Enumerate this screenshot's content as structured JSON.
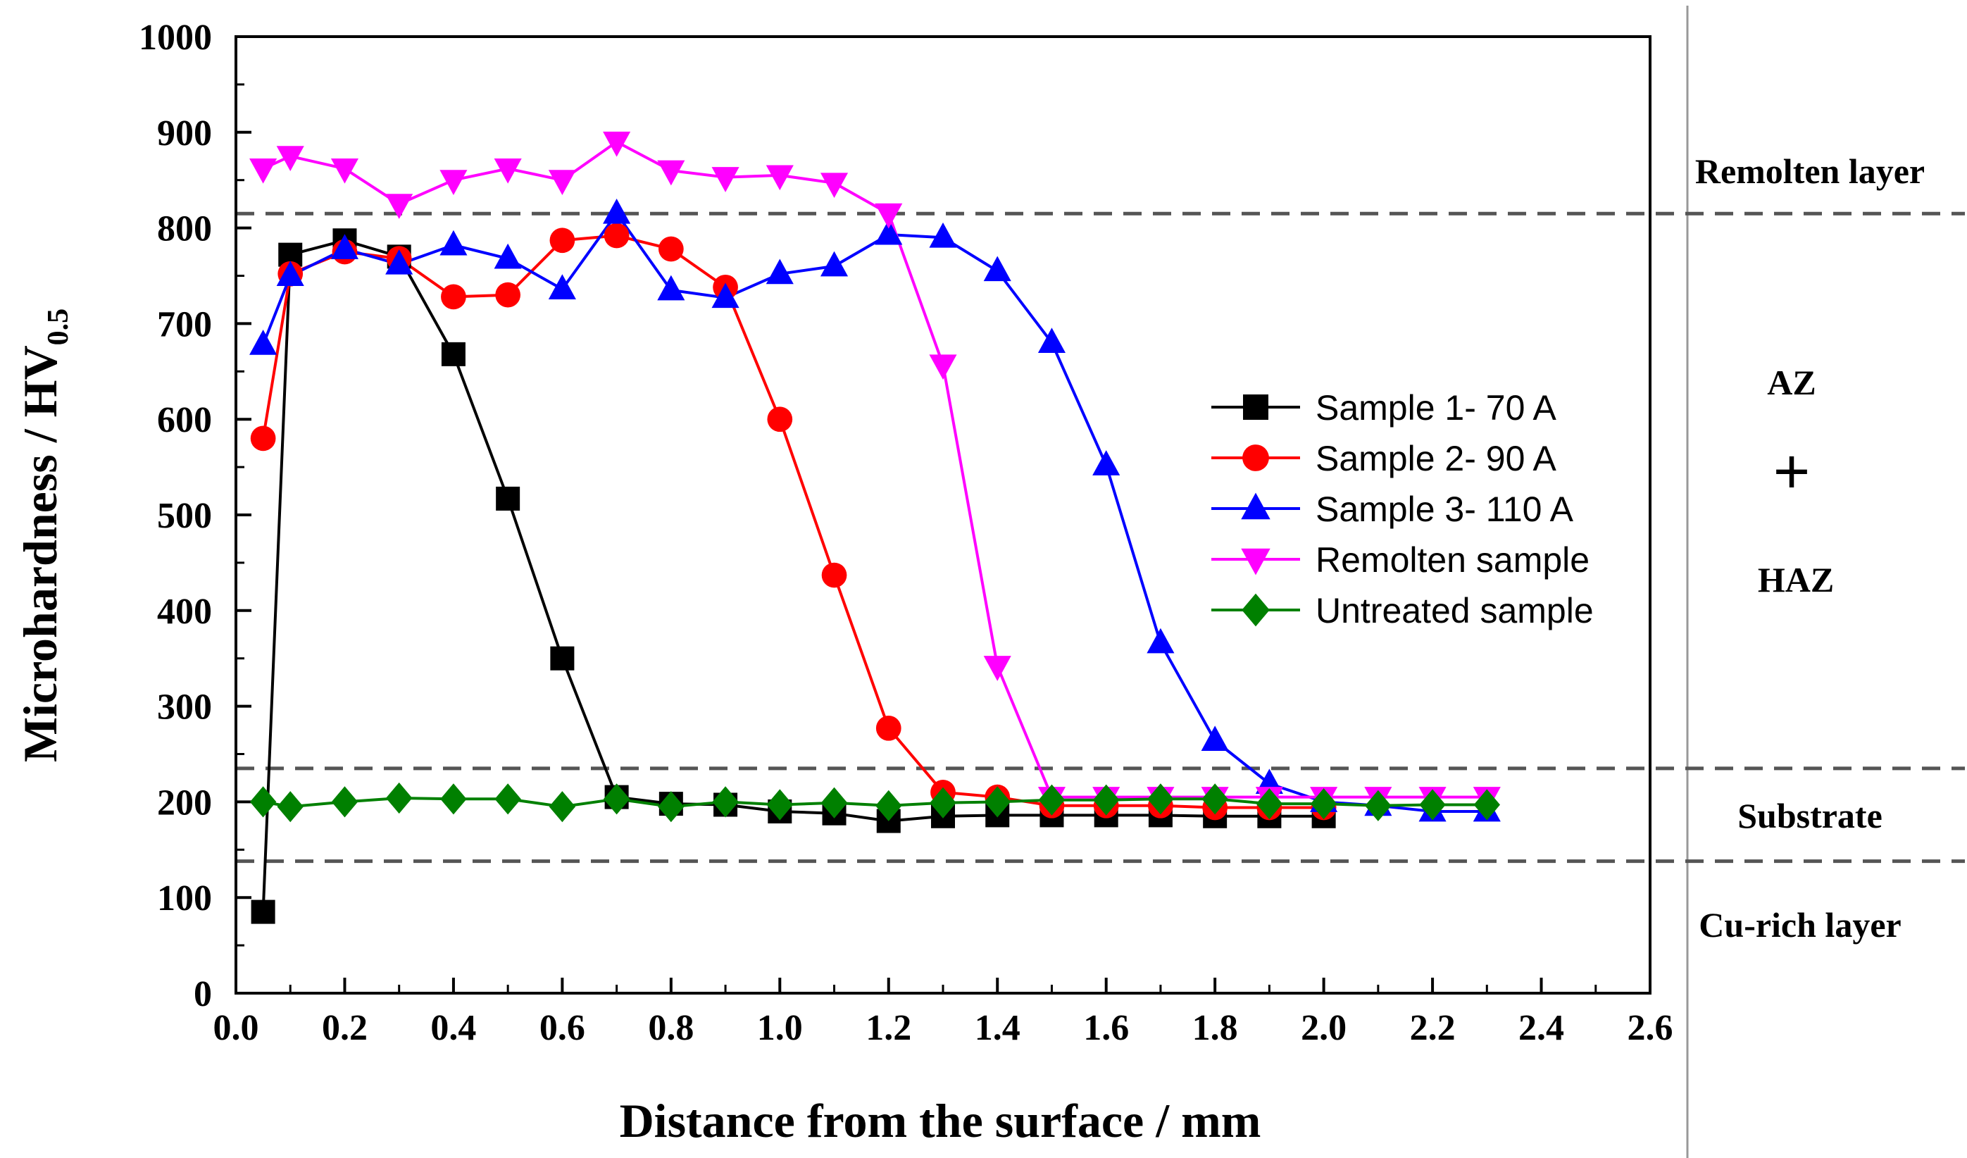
{
  "chart_data": {
    "type": "line",
    "xlabel": "Distance from the surface / mm",
    "ylabel_main": "Microhardness / HV",
    "ylabel_sub": "0.5",
    "xlim": [
      0,
      2.6
    ],
    "ylim": [
      0,
      1000
    ],
    "xticks": [
      0.0,
      0.2,
      0.4,
      0.6,
      0.8,
      1.0,
      1.2,
      1.4,
      1.6,
      1.8,
      2.0,
      2.2,
      2.4,
      2.6
    ],
    "xtick_labels": [
      "0.0",
      "0.2",
      "0.4",
      "0.6",
      "0.8",
      "1.0",
      "1.2",
      "1.4",
      "1.6",
      "1.8",
      "2.0",
      "2.2",
      "2.4",
      "2.6"
    ],
    "yticks": [
      0,
      100,
      200,
      300,
      400,
      500,
      600,
      700,
      800,
      900,
      1000
    ],
    "ytick_labels": [
      "0",
      "100",
      "200",
      "300",
      "400",
      "500",
      "600",
      "700",
      "800",
      "900",
      "1000"
    ],
    "series": [
      {
        "name": "Sample 1- 70 A",
        "color": "#000000",
        "marker": "square",
        "x": [
          0.05,
          0.1,
          0.2,
          0.3,
          0.4,
          0.5,
          0.6,
          0.7,
          0.8,
          0.9,
          1.0,
          1.1,
          1.2,
          1.3,
          1.4,
          1.5,
          1.6,
          1.7,
          1.8,
          1.9,
          2.0
        ],
        "y": [
          85,
          772,
          787,
          770,
          668,
          517,
          350,
          205,
          198,
          197,
          190,
          188,
          180,
          185,
          186,
          186,
          186,
          186,
          185,
          185,
          185
        ]
      },
      {
        "name": "Sample 2- 90 A",
        "color": "#ff0000",
        "marker": "circle",
        "x": [
          0.05,
          0.1,
          0.2,
          0.3,
          0.4,
          0.5,
          0.6,
          0.7,
          0.8,
          0.9,
          1.0,
          1.1,
          1.2,
          1.3,
          1.4,
          1.5,
          1.6,
          1.7,
          1.8,
          1.9,
          2.0
        ],
        "y": [
          580,
          752,
          775,
          768,
          728,
          730,
          787,
          792,
          778,
          738,
          600,
          437,
          277,
          210,
          205,
          196,
          196,
          196,
          194,
          194,
          194
        ]
      },
      {
        "name": "Sample 3- 110 A",
        "color": "#0000ff",
        "marker": "triangle-up",
        "x": [
          0.05,
          0.1,
          0.2,
          0.3,
          0.4,
          0.5,
          0.6,
          0.7,
          0.8,
          0.9,
          1.0,
          1.1,
          1.2,
          1.3,
          1.4,
          1.5,
          1.6,
          1.7,
          1.8,
          1.9,
          2.0,
          2.1,
          2.2,
          2.3
        ],
        "y": [
          678,
          750,
          778,
          762,
          782,
          768,
          736,
          815,
          735,
          727,
          752,
          760,
          793,
          790,
          755,
          680,
          552,
          366,
          264,
          219,
          200,
          196,
          190,
          190
        ]
      },
      {
        "name": "Remolten sample",
        "color": "#ff00ff",
        "marker": "triangle-down",
        "x": [
          0.05,
          0.1,
          0.2,
          0.3,
          0.4,
          0.5,
          0.6,
          0.7,
          0.8,
          0.9,
          1.0,
          1.1,
          1.2,
          1.3,
          1.4,
          1.5,
          1.6,
          1.7,
          1.8,
          1.9,
          2.0,
          2.1,
          2.2,
          2.3
        ],
        "y": [
          862,
          875,
          862,
          825,
          850,
          862,
          850,
          890,
          860,
          853,
          855,
          847,
          815,
          657,
          342,
          205,
          205,
          205,
          205,
          205,
          205,
          205,
          205,
          205
        ]
      },
      {
        "name": "Untreated sample",
        "color": "#008000",
        "marker": "diamond",
        "x": [
          0.05,
          0.1,
          0.2,
          0.3,
          0.4,
          0.5,
          0.6,
          0.7,
          0.8,
          0.9,
          1.0,
          1.1,
          1.2,
          1.3,
          1.4,
          1.5,
          1.6,
          1.7,
          1.8,
          1.9,
          2.0,
          2.1,
          2.2,
          2.3
        ],
        "y": [
          200,
          195,
          200,
          204,
          203,
          203,
          195,
          203,
          195,
          200,
          197,
          199,
          196,
          199,
          200,
          202,
          202,
          203,
          203,
          198,
          198,
          196,
          197,
          197
        ]
      }
    ],
    "reference_lines": [
      {
        "y": 815,
        "style": "dashed"
      },
      {
        "y": 235,
        "style": "dashed"
      },
      {
        "y": 138,
        "style": "dashed"
      }
    ],
    "zone_labels": {
      "remolten": "Remolten layer",
      "az": "AZ",
      "plus": "+",
      "haz": "HAZ",
      "substrate": "Substrate",
      "cu_rich": "Cu-rich layer"
    },
    "legend_position": "center-right"
  }
}
